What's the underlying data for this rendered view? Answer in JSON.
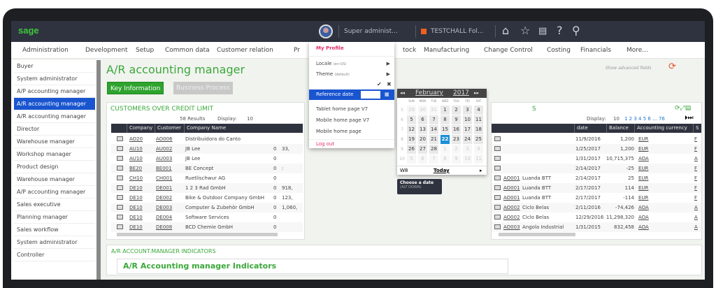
{
  "app": {
    "logo": "sage",
    "user": "Super administ...",
    "folder": "TESTCHALL Fol...",
    "show_advanced": "Show advanced fields"
  },
  "nav": [
    "Administration",
    "Development",
    "Setup",
    "Common data",
    "Customer relation",
    "Pr",
    "tock",
    "Manufacturing",
    "Change Control",
    "Costing",
    "Financials",
    "More..."
  ],
  "sidebar": [
    "Buyer",
    "System administrator",
    "A/P accounting manager",
    "A/R accounting manager",
    "A/R accounting manager",
    "Director",
    "Warehouse manager",
    "Workshop manager",
    "Product design",
    "Warehouse manager",
    "A/P accounting manager",
    "Sales executive",
    "Planning manager",
    "Sales workflow",
    "System administrator",
    "Controller"
  ],
  "page": {
    "title": "A/R accounting manager",
    "tabs": [
      "Key Information",
      "Business Process"
    ]
  },
  "menu": {
    "my_profile": "My Profile",
    "locale": "Locale",
    "locale_value": "(en-US)",
    "theme": "Theme",
    "theme_value": "(default)",
    "reference_date": "Reference date",
    "reference_date_value": "",
    "items": [
      "Tablet home page V7",
      "Mobile home page V7",
      "Mobile home page"
    ],
    "logout": "Log out"
  },
  "calendar": {
    "month": "February",
    "year": "2017",
    "weekdays": [
      "SUN",
      "MON",
      "TUE",
      "WED",
      "THU",
      "FRI",
      "SAT"
    ],
    "weeks": [
      "5",
      "6",
      "7",
      "8",
      "9",
      "10"
    ],
    "days": [
      [
        "29",
        "30",
        "31",
        "1",
        "2",
        "3",
        "4"
      ],
      [
        "5",
        "6",
        "7",
        "8",
        "9",
        "10",
        "11"
      ],
      [
        "12",
        "13",
        "14",
        "15",
        "16",
        "17",
        "18"
      ],
      [
        "19",
        "20",
        "21",
        "22",
        "23",
        "24",
        "25"
      ],
      [
        "26",
        "27",
        "28",
        "1",
        "2",
        "3",
        "4"
      ],
      [
        "5",
        "6",
        "7",
        "8",
        "9",
        "10",
        "11"
      ]
    ],
    "selected": "22",
    "week_label": "W8",
    "today": "Today"
  },
  "tooltip": {
    "title": "Choose a date",
    "shortcut": "(ALT DOWN)"
  },
  "left_panel": {
    "title": "CUSTOMERS OVER CREDIT LIMIT",
    "results": "58 Results",
    "display_label": "Display:",
    "display_value": "10",
    "columns": [
      "Company",
      "Customer",
      "Company Name"
    ],
    "rows": [
      [
        "AO20",
        "AO006",
        "Distribuidora do Canto",
        "",
        ""
      ],
      [
        "AU10",
        "AU002",
        "JB Lee",
        "0",
        "33,"
      ],
      [
        "AU10",
        "AU003",
        "JB Lee",
        "0",
        ""
      ],
      [
        "BE20",
        "BE001",
        "BE Concept",
        "0",
        ":"
      ],
      [
        "CH10",
        "CH001",
        "Ruetlischwur AG",
        "0",
        ""
      ],
      [
        "DE10",
        "DE001",
        "1 2 3 Rad GmbH",
        "0",
        "918,"
      ],
      [
        "DE10",
        "DE002",
        "Bike & Outdoor Company GmbH",
        "0",
        "123,"
      ],
      [
        "DE10",
        "DE003",
        "Computer & Zubehör GmbH",
        "0",
        "1,060,"
      ],
      [
        "DE10",
        "DE004",
        "Software Services",
        "0",
        ""
      ],
      [
        "DE10",
        "DE008",
        "BCD Chemie GmbH",
        "0",
        ""
      ]
    ]
  },
  "right_panel": {
    "title_suffix": "S",
    "display_label": "Display:",
    "display_value": "10",
    "pagination": "1 2 3 4 5 6 ... 76",
    "columns": [
      "date",
      "Balance",
      "Accounting currency",
      "S"
    ],
    "rows": [
      [
        "",
        "",
        "11/9/2016",
        "1,200",
        "EUR",
        "F"
      ],
      [
        "",
        "",
        "1/25/2017",
        "1,200",
        "EUR",
        "F"
      ],
      [
        "",
        "",
        "1/31/2017",
        "10,715,375",
        "AOA",
        "A"
      ],
      [
        "",
        "",
        "2/14/2017",
        "-25",
        "EUR",
        "F"
      ],
      [
        "AO001",
        "Luanda BTT",
        "2/14/2017",
        "25",
        "EUR",
        "F"
      ],
      [
        "AO001",
        "Luanda BTT",
        "2/17/2017",
        "114",
        "EUR",
        "F"
      ],
      [
        "AO001",
        "Luanda BTT",
        "2/17/2017",
        "-114",
        "EUR",
        "F"
      ],
      [
        "AO002",
        "Ciclo Belas",
        "2/11/2016",
        "-74,426",
        "AOA",
        "A"
      ],
      [
        "AO002",
        "Ciclo Belas",
        "12/29/2016",
        "11,298,320",
        "AOA",
        "A"
      ],
      [
        "AO003",
        "Angola Industrial",
        "1/31/2015",
        "832,458",
        "AOA",
        "A"
      ]
    ]
  },
  "bottom_panel": {
    "title": "A/R ACCOUNT.MANAGER INDICATORS",
    "subtitle": "A/R Accounting manager Indicators"
  }
}
